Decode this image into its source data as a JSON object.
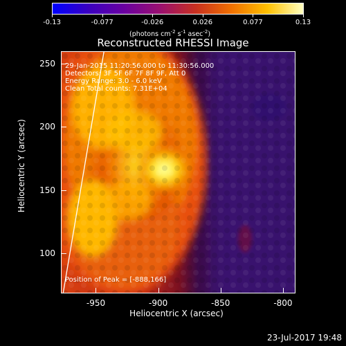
{
  "colorbar": {
    "tick_labels": [
      "-0.13",
      "-0.077",
      "-0.026",
      "0.026",
      "0.077",
      "0.13"
    ],
    "units_prefix": "(photons cm",
    "units_exp1": "-2",
    "units_mid1": " s",
    "units_exp2": "-1",
    "units_mid2": " asec",
    "units_exp3": "-2",
    "units_suffix": ")",
    "colors": [
      "#0000ff",
      "#3a00c0",
      "#6a00a0",
      "#9a1070",
      "#c83020",
      "#f07000",
      "#ffc000",
      "#ffffc0"
    ]
  },
  "title": "Reconstructed RHESSI Image",
  "info": {
    "time_range": "29-Jan-2015 11:20:56.000 to 11:30:56.000",
    "detectors": "Detectors: 3F 5F 6F 7F 8F 9F, Att 0",
    "energy": "Energy Range: 3.0 - 6.0 keV",
    "counts": "Clean   Total counts: 7.31E+04",
    "peak": "Position of Peak = [-888,166]"
  },
  "axes": {
    "xlabel": "Heliocentric X (arcsec)",
    "ylabel": "Heliocentric Y (arcsec)",
    "xticks": [
      "-950",
      "-900",
      "-850",
      "-800"
    ],
    "yticks": [
      "250",
      "200",
      "150",
      "100"
    ],
    "xlim": [
      -978,
      -790
    ],
    "ylim": [
      68,
      260
    ]
  },
  "timestamp": "23-Jul-2017 19:48",
  "chart_data": {
    "type": "heatmap",
    "title": "Reconstructed RHESSI Image",
    "xlabel": "Heliocentric X (arcsec)",
    "ylabel": "Heliocentric Y (arcsec)",
    "xlim": [
      -978,
      -790
    ],
    "ylim": [
      68,
      260
    ],
    "clim": [
      -0.13,
      0.13
    ],
    "peak": [
      -888,
      166
    ],
    "x_ticks": [
      -950,
      -900,
      -850,
      -800
    ],
    "y_ticks": [
      250,
      200,
      150,
      100
    ]
  }
}
